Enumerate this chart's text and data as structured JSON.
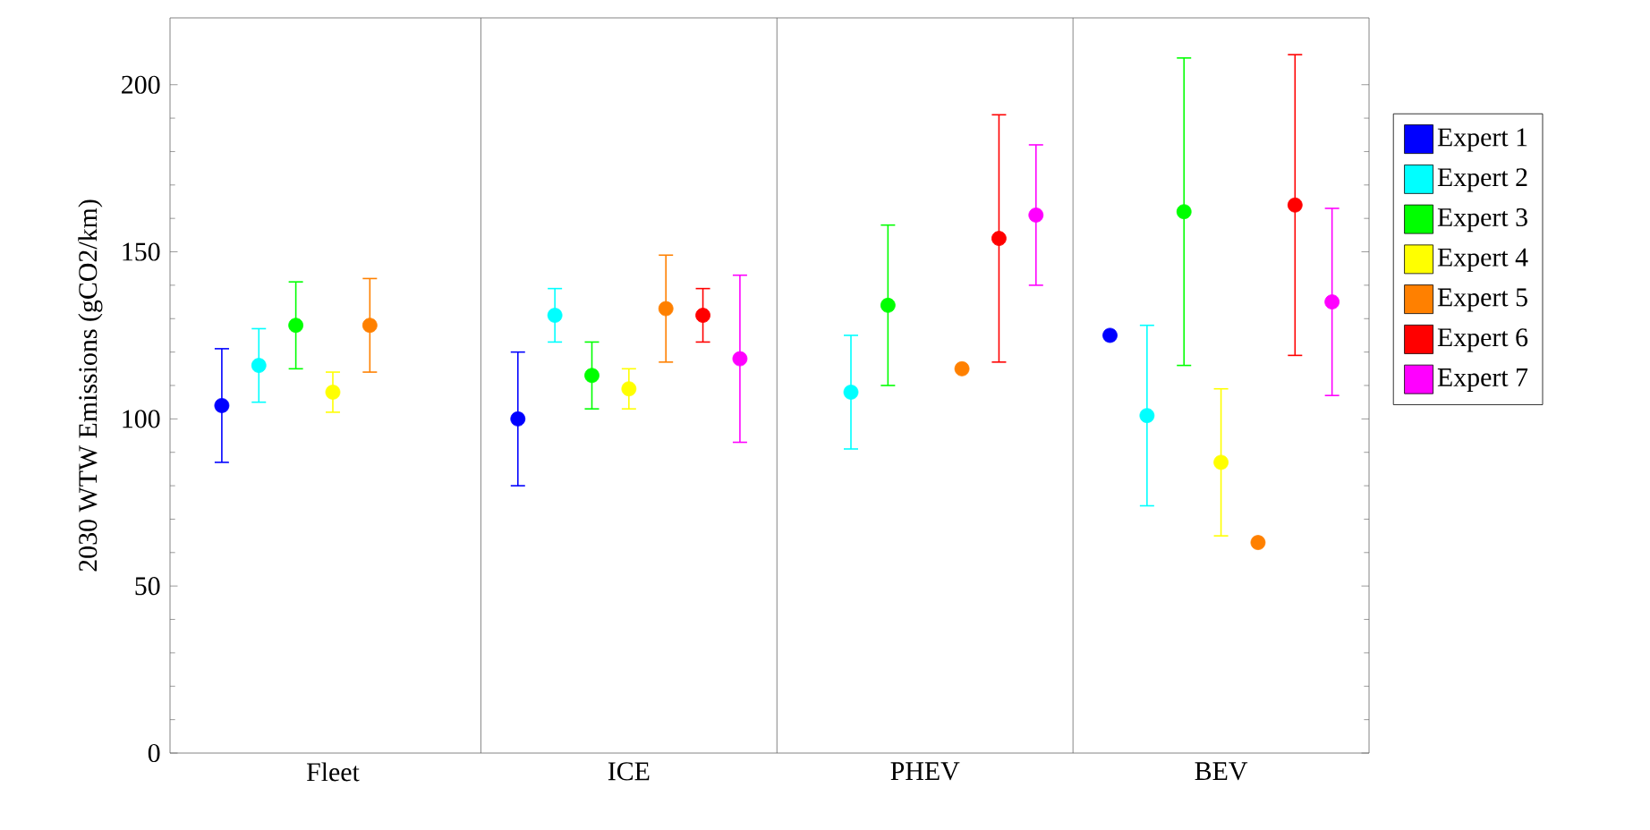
{
  "chart_data": {
    "type": "scatter",
    "ylabel": "2030 WTW Emissions (gCO2/km)",
    "categories": [
      "Fleet",
      "ICE",
      "PHEV",
      "BEV"
    ],
    "ylim": [
      0,
      220
    ],
    "yticks": [
      0,
      50,
      100,
      150,
      200
    ],
    "legend": "right",
    "grid": false,
    "series": [
      {
        "name": "Expert 1",
        "color": "#0000ff",
        "values": [
          104,
          100,
          null,
          125
        ],
        "errors": [
          [
            87,
            121
          ],
          [
            80,
            120
          ],
          null,
          null
        ]
      },
      {
        "name": "Expert 2",
        "color": "#00ffff",
        "values": [
          116,
          131,
          108,
          101
        ],
        "errors": [
          [
            105,
            127
          ],
          [
            123,
            139
          ],
          [
            91,
            125
          ],
          [
            74,
            128
          ]
        ]
      },
      {
        "name": "Expert 3",
        "color": "#00ff00",
        "values": [
          128,
          113,
          134,
          162
        ],
        "errors": [
          [
            115,
            141
          ],
          [
            103,
            123
          ],
          [
            110,
            158
          ],
          [
            116,
            208
          ]
        ]
      },
      {
        "name": "Expert 4",
        "color": "#ffff00",
        "values": [
          108,
          109,
          null,
          87
        ],
        "errors": [
          [
            102,
            114
          ],
          [
            103,
            115
          ],
          null,
          [
            65,
            109
          ]
        ]
      },
      {
        "name": "Expert 5",
        "color": "#ff8000",
        "values": [
          128,
          133,
          115,
          63
        ],
        "errors": [
          [
            114,
            142
          ],
          [
            117,
            149
          ],
          null,
          null
        ]
      },
      {
        "name": "Expert 6",
        "color": "#ff0000",
        "values": [
          null,
          131,
          154,
          164
        ],
        "errors": [
          null,
          [
            123,
            139
          ],
          [
            117,
            191
          ],
          [
            119,
            209
          ]
        ]
      },
      {
        "name": "Expert 7",
        "color": "#ff00ff",
        "values": [
          null,
          118,
          161,
          135
        ],
        "errors": [
          null,
          [
            93,
            143
          ],
          [
            140,
            182
          ],
          [
            107,
            163
          ]
        ]
      }
    ]
  }
}
